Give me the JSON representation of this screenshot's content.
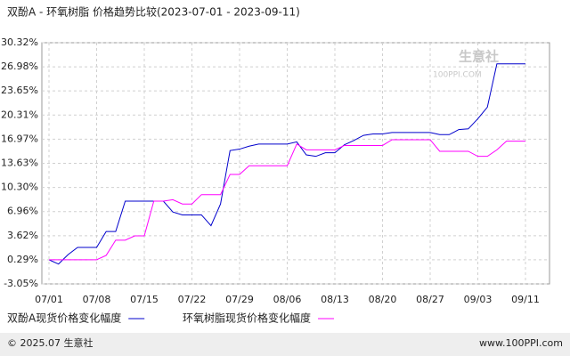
{
  "chart_data": {
    "type": "line",
    "title": "双酚A - 环氧树脂 价格趋势比较(2023-07-01 - 2023-09-11)",
    "watermark": "生意社",
    "watermark_sub": "100PPI.COM",
    "footer_left": "© 2025.07 生意社",
    "footer_right": "www.100PPI.com",
    "categories": [
      "07/01",
      null,
      null,
      null,
      null,
      "07/08",
      null,
      null,
      null,
      null,
      "07/15",
      null,
      null,
      null,
      null,
      "07/22",
      null,
      null,
      null,
      null,
      "07/29",
      null,
      null,
      null,
      null,
      "08/06",
      null,
      null,
      null,
      null,
      "08/13",
      null,
      null,
      null,
      null,
      "08/20",
      null,
      null,
      null,
      null,
      "08/27",
      null,
      null,
      null,
      null,
      "09/03",
      null,
      null,
      null,
      null,
      "09/11"
    ],
    "series": [
      {
        "name": "双酚A现货价格变化幅度",
        "color": "#0000cc",
        "values": [
          0.29,
          -0.3,
          1.0,
          2.0,
          2.0,
          2.0,
          4.2,
          4.2,
          8.4,
          8.4,
          8.4,
          8.4,
          8.4,
          6.9,
          6.5,
          6.5,
          6.5,
          5.0,
          8.0,
          15.4,
          15.6,
          16.0,
          16.3,
          16.3,
          16.3,
          16.3,
          16.6,
          14.8,
          14.6,
          15.1,
          15.1,
          16.2,
          16.8,
          17.5,
          17.7,
          17.7,
          17.9,
          17.9,
          17.9,
          17.9,
          17.9,
          17.6,
          17.6,
          18.3,
          18.4,
          19.8,
          21.4,
          27.4,
          27.4,
          27.4,
          27.4
        ]
      },
      {
        "name": "环氧树脂现货价格变化幅度",
        "color": "#ff00ff",
        "values": [
          0.29,
          0.29,
          0.29,
          0.29,
          0.29,
          0.29,
          0.9,
          3.0,
          3.0,
          3.6,
          3.6,
          8.4,
          8.4,
          8.6,
          8.0,
          8.0,
          9.3,
          9.3,
          9.3,
          12.1,
          12.1,
          13.3,
          13.3,
          13.3,
          13.3,
          13.3,
          16.3,
          15.5,
          15.5,
          15.5,
          15.5,
          16.1,
          16.1,
          16.1,
          16.1,
          16.1,
          16.9,
          16.9,
          16.9,
          16.9,
          16.9,
          15.3,
          15.3,
          15.3,
          15.3,
          14.6,
          14.6,
          15.5,
          16.7,
          16.7,
          16.7
        ]
      }
    ],
    "ylim": [
      -3.05,
      30.32
    ],
    "yticks": [
      {
        "value": -3.05,
        "label": "-3.05%"
      },
      {
        "value": 0.29,
        "label": "0.29%"
      },
      {
        "value": 3.62,
        "label": "3.62%"
      },
      {
        "value": 6.96,
        "label": "6.96%"
      },
      {
        "value": 10.3,
        "label": "10.30%"
      },
      {
        "value": 13.63,
        "label": "13.63%"
      },
      {
        "value": 16.97,
        "label": "16.97%"
      },
      {
        "value": 20.31,
        "label": "20.31%"
      },
      {
        "value": 23.65,
        "label": "23.65%"
      },
      {
        "value": 26.98,
        "label": "26.98%"
      },
      {
        "value": 30.32,
        "label": "30.32%"
      }
    ],
    "grid": true
  }
}
